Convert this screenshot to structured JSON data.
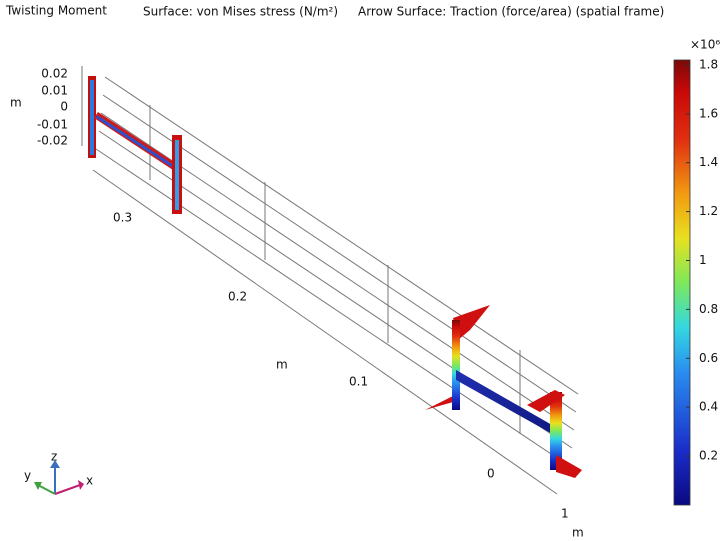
{
  "title": {
    "plot_name": "Twisting Moment",
    "surface": "Surface: von Mises stress (N/m²)",
    "arrows": "Arrow Surface: Traction (force/area) (spatial frame)"
  },
  "axes": {
    "z_unit": "m",
    "z_ticks": [
      "0.02",
      "0.01",
      "0",
      "-0.01",
      "-0.02"
    ],
    "y_ticks": [
      "0.3",
      "0.2",
      "0.1",
      "0"
    ],
    "y_unit": "m",
    "x_tick": "1",
    "x_unit": "m"
  },
  "triad": {
    "z": "z",
    "y": "y",
    "x": "x"
  },
  "colorbar": {
    "multiplier": "×10⁶",
    "range": [
      0,
      1.82
    ],
    "ticks": [
      1.8,
      1.6,
      1.4,
      1.2,
      1,
      0.8,
      0.6,
      0.4,
      0.2
    ]
  }
}
